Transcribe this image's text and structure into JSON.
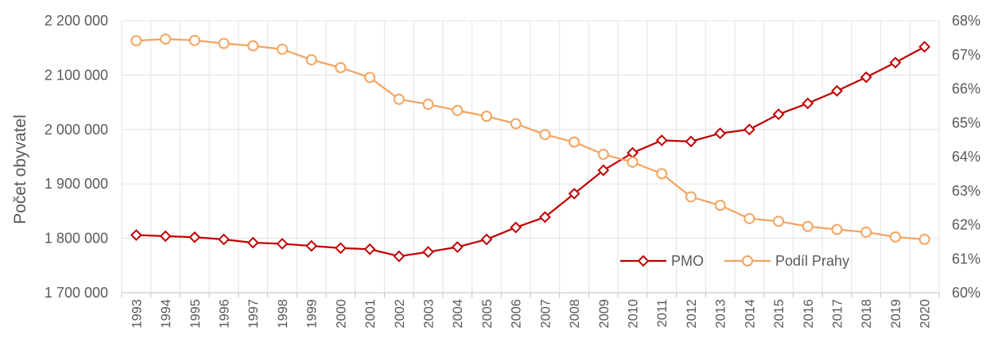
{
  "chart_data": {
    "type": "line",
    "title": "",
    "xlabel": "",
    "ylabel": "Počet obyvatel",
    "y2label": "",
    "categories": [
      "1993",
      "1994",
      "1995",
      "1996",
      "1997",
      "1998",
      "1999",
      "2000",
      "2001",
      "2002",
      "2003",
      "2004",
      "2005",
      "2006",
      "2007",
      "2008",
      "2009",
      "2010",
      "2011",
      "2012",
      "2013",
      "2014",
      "2015",
      "2016",
      "2017",
      "2018",
      "2019",
      "2020"
    ],
    "ylim": [
      1700000,
      2200000
    ],
    "y_ticks": [
      1700000,
      1800000,
      1900000,
      2000000,
      2100000,
      2200000
    ],
    "y_tick_labels": [
      "1 700 000",
      "1 800 000",
      "1 900 000",
      "2 000 000",
      "2 100 000",
      "2 200 000"
    ],
    "y2lim": [
      0.6,
      0.68
    ],
    "y2_ticks": [
      0.6,
      0.61,
      0.62,
      0.63,
      0.64,
      0.65,
      0.66,
      0.67,
      0.68
    ],
    "y2_tick_labels": [
      "60%",
      "61%",
      "62%",
      "63%",
      "64%",
      "65%",
      "66%",
      "67%",
      "68%"
    ],
    "grid": true,
    "legend_position": "bottom-right",
    "series": [
      {
        "name": "PMO",
        "axis": "left",
        "color": "#c00000",
        "marker": "diamond",
        "values": [
          1806000,
          1804000,
          1802000,
          1798000,
          1792000,
          1790000,
          1786000,
          1782000,
          1780000,
          1767000,
          1775000,
          1784000,
          1798000,
          1820000,
          1839000,
          1882000,
          1925000,
          1957000,
          1980000,
          1978000,
          1993000,
          2000000,
          2028000,
          2048000,
          2071000,
          2096000,
          2123000,
          2152000
        ]
      },
      {
        "name": "Podíl Prahy",
        "axis": "right",
        "color": "#f4a460",
        "marker": "circle",
        "values": [
          0.6741,
          0.6746,
          0.6742,
          0.6733,
          0.6726,
          0.6716,
          0.6685,
          0.6662,
          0.6633,
          0.6569,
          0.6554,
          0.6536,
          0.6519,
          0.6497,
          0.6465,
          0.6443,
          0.6407,
          0.6384,
          0.635,
          0.6282,
          0.6257,
          0.6218,
          0.621,
          0.6195,
          0.6186,
          0.6178,
          0.6164,
          0.6157
        ]
      }
    ]
  }
}
